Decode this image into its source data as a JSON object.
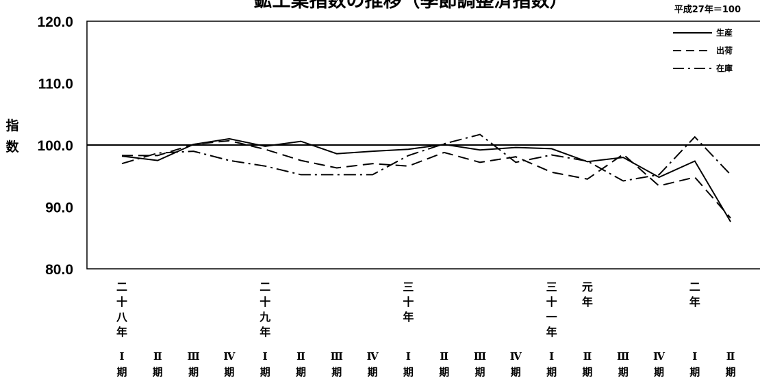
{
  "chart_data": {
    "type": "line",
    "title": "鉱工業指数の推移（季節調整済指数）",
    "base_note": "平成27年＝100",
    "ylabel": "指数",
    "ylim": [
      80,
      120
    ],
    "yticks": [
      "120.0",
      "110.0",
      "100.0",
      "90.0",
      "80.0"
    ],
    "ytick_values": [
      120,
      110,
      100,
      90,
      80
    ],
    "reference_line": 100,
    "year_labels": [
      {
        "index": 0,
        "text": "二十八年"
      },
      {
        "index": 4,
        "text": "二十九年"
      },
      {
        "index": 8,
        "text": "三十年"
      },
      {
        "index": 12,
        "text": "三十一年"
      },
      {
        "index": 13,
        "text": "元年"
      },
      {
        "index": 16,
        "text": "二年"
      }
    ],
    "quarter_labels": [
      "Ⅰ",
      "Ⅱ",
      "Ⅲ",
      "Ⅳ",
      "Ⅰ",
      "Ⅱ",
      "Ⅲ",
      "Ⅳ",
      "Ⅰ",
      "Ⅱ",
      "Ⅲ",
      "Ⅳ",
      "Ⅰ",
      "Ⅱ",
      "Ⅲ",
      "Ⅳ",
      "Ⅰ",
      "Ⅱ"
    ],
    "period_suffix": "期",
    "series": [
      {
        "name": "生産",
        "style": "solid",
        "values": [
          98.2,
          97.5,
          100.1,
          101.0,
          99.8,
          100.6,
          98.6,
          99.0,
          99.3,
          100.1,
          99.2,
          99.6,
          99.4,
          97.3,
          98.0,
          94.8,
          97.4,
          87.6
        ]
      },
      {
        "name": "出荷",
        "style": "dashed",
        "values": [
          98.3,
          98.3,
          100.1,
          100.7,
          99.3,
          97.5,
          96.3,
          97.0,
          96.6,
          98.8,
          97.2,
          98.1,
          95.6,
          94.5,
          98.5,
          93.4,
          94.8,
          88.2
        ]
      },
      {
        "name": "在庫",
        "style": "dashdot",
        "values": [
          97.0,
          98.7,
          99.0,
          97.5,
          96.6,
          95.2,
          95.2,
          95.2,
          98.3,
          100.2,
          101.7,
          97.2,
          98.4,
          97.4,
          94.2,
          95.2,
          101.3,
          95.2
        ]
      }
    ],
    "legend_position": "top-right",
    "grid": false
  }
}
